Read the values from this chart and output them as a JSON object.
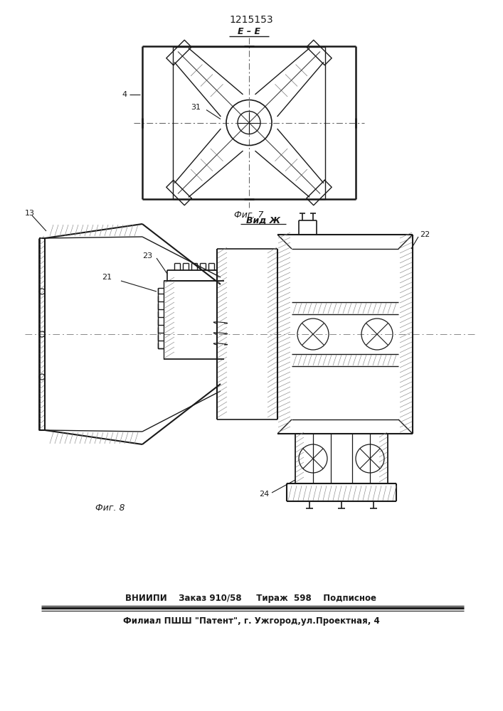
{
  "title": "1215153",
  "fig7_label": "E – E",
  "fig7_caption": "Фиг. 7",
  "fig8_caption": "Фиг. 8",
  "fig8_label": "Вид Ж",
  "label_4": "4",
  "label_31": "31",
  "label_13": "13",
  "label_21": "21",
  "label_22": "22",
  "label_23": "23",
  "label_24": "24",
  "bottom_line1": "ВНИИПИ    Заказ 910/58     Тираж  598    Подписное",
  "bottom_line2": "Филиал ПШШ \"Патент\", г. Ужгород,ул.Проектная, 4",
  "bg_color": "#ffffff",
  "line_color": "#1a1a1a",
  "text_color": "#1a1a1a"
}
